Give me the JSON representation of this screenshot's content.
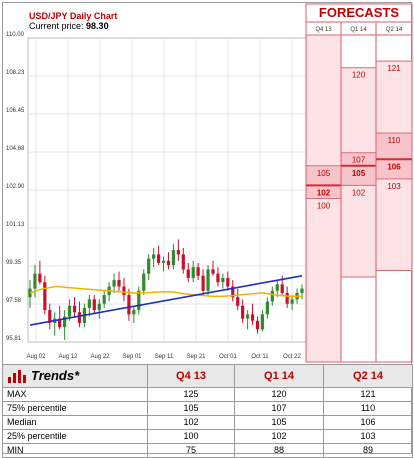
{
  "chart_title": "USD/JPY Daily Chart",
  "price_label": "Current price:",
  "price_value": "98.30",
  "forecasts_title": "FORECASTS",
  "colors": {
    "up": "#2e8b2e",
    "down": "#c8102e",
    "trend": "#1f2fbf",
    "ma": "#f0b400",
    "forecast_fill": "#fde3e6",
    "forecast_line": "#d62a3a",
    "title_red": "#c00000"
  },
  "chart_data": {
    "type": "candlestick",
    "title": "USD/JPY Daily Chart",
    "ylim": [
      95.81,
      110.0
    ],
    "yticks": [
      "110.00",
      "108.23",
      "106.45",
      "104.68",
      "102.90",
      "101.13",
      "99.35",
      "97.58",
      "95.81"
    ],
    "xticks": [
      "Aug 02",
      "Aug 12",
      "Aug 22",
      "Sep 01",
      "Sep 11",
      "Sep 21",
      "Oct 01",
      "Oct 11",
      "Oct 22"
    ],
    "candles": [
      {
        "o": 97.9,
        "h": 98.7,
        "l": 97.4,
        "c": 98.3
      },
      {
        "o": 98.3,
        "h": 99.4,
        "l": 97.9,
        "c": 99.0
      },
      {
        "o": 99.0,
        "h": 99.6,
        "l": 98.5,
        "c": 98.6
      },
      {
        "o": 98.6,
        "h": 98.9,
        "l": 97.1,
        "c": 97.3
      },
      {
        "o": 97.3,
        "h": 97.6,
        "l": 96.4,
        "c": 96.7
      },
      {
        "o": 96.7,
        "h": 97.2,
        "l": 96.1,
        "c": 96.9
      },
      {
        "o": 96.9,
        "h": 97.5,
        "l": 96.4,
        "c": 96.5
      },
      {
        "o": 96.5,
        "h": 97.3,
        "l": 95.9,
        "c": 97.0
      },
      {
        "o": 97.0,
        "h": 97.8,
        "l": 96.8,
        "c": 97.5
      },
      {
        "o": 97.5,
        "h": 97.9,
        "l": 97.0,
        "c": 97.2
      },
      {
        "o": 97.2,
        "h": 97.7,
        "l": 96.5,
        "c": 96.7
      },
      {
        "o": 96.7,
        "h": 97.6,
        "l": 96.5,
        "c": 97.4
      },
      {
        "o": 97.4,
        "h": 98.0,
        "l": 97.0,
        "c": 97.8
      },
      {
        "o": 97.8,
        "h": 98.0,
        "l": 97.1,
        "c": 97.3
      },
      {
        "o": 97.3,
        "h": 97.8,
        "l": 96.9,
        "c": 97.6
      },
      {
        "o": 97.6,
        "h": 98.2,
        "l": 97.4,
        "c": 98.0
      },
      {
        "o": 98.0,
        "h": 98.6,
        "l": 97.7,
        "c": 98.4
      },
      {
        "o": 98.4,
        "h": 99.0,
        "l": 98.1,
        "c": 98.7
      },
      {
        "o": 98.7,
        "h": 99.1,
        "l": 98.2,
        "c": 98.4
      },
      {
        "o": 98.4,
        "h": 98.8,
        "l": 97.7,
        "c": 98.0
      },
      {
        "o": 98.0,
        "h": 98.3,
        "l": 96.8,
        "c": 97.1
      },
      {
        "o": 97.1,
        "h": 97.5,
        "l": 96.7,
        "c": 97.3
      },
      {
        "o": 97.3,
        "h": 98.4,
        "l": 97.1,
        "c": 98.2
      },
      {
        "o": 98.2,
        "h": 99.2,
        "l": 98.0,
        "c": 99.0
      },
      {
        "o": 99.0,
        "h": 99.9,
        "l": 98.7,
        "c": 99.7
      },
      {
        "o": 99.7,
        "h": 100.2,
        "l": 99.3,
        "c": 99.9
      },
      {
        "o": 99.9,
        "h": 100.3,
        "l": 99.4,
        "c": 99.5
      },
      {
        "o": 99.5,
        "h": 99.8,
        "l": 99.1,
        "c": 99.6
      },
      {
        "o": 99.6,
        "h": 100.0,
        "l": 99.2,
        "c": 99.4
      },
      {
        "o": 99.4,
        "h": 100.4,
        "l": 99.2,
        "c": 100.1
      },
      {
        "o": 100.1,
        "h": 100.6,
        "l": 99.6,
        "c": 99.9
      },
      {
        "o": 99.9,
        "h": 100.2,
        "l": 99.0,
        "c": 99.2
      },
      {
        "o": 99.2,
        "h": 99.5,
        "l": 98.6,
        "c": 98.8
      },
      {
        "o": 98.8,
        "h": 99.6,
        "l": 98.6,
        "c": 99.3
      },
      {
        "o": 99.3,
        "h": 99.5,
        "l": 98.7,
        "c": 98.9
      },
      {
        "o": 98.9,
        "h": 99.2,
        "l": 98.0,
        "c": 98.2
      },
      {
        "o": 98.2,
        "h": 99.4,
        "l": 98.0,
        "c": 99.2
      },
      {
        "o": 99.2,
        "h": 99.6,
        "l": 98.9,
        "c": 99.0
      },
      {
        "o": 99.0,
        "h": 99.3,
        "l": 98.4,
        "c": 98.6
      },
      {
        "o": 98.6,
        "h": 99.0,
        "l": 98.3,
        "c": 98.8
      },
      {
        "o": 98.8,
        "h": 99.1,
        "l": 98.2,
        "c": 98.4
      },
      {
        "o": 98.4,
        "h": 98.7,
        "l": 97.7,
        "c": 97.9
      },
      {
        "o": 97.9,
        "h": 98.3,
        "l": 97.3,
        "c": 97.5
      },
      {
        "o": 97.5,
        "h": 97.8,
        "l": 96.7,
        "c": 96.9
      },
      {
        "o": 96.9,
        "h": 97.3,
        "l": 96.4,
        "c": 97.1
      },
      {
        "o": 97.1,
        "h": 97.6,
        "l": 96.6,
        "c": 96.8
      },
      {
        "o": 96.8,
        "h": 97.0,
        "l": 96.2,
        "c": 96.4
      },
      {
        "o": 96.4,
        "h": 97.3,
        "l": 96.3,
        "c": 97.1
      },
      {
        "o": 97.1,
        "h": 97.9,
        "l": 96.9,
        "c": 97.7
      },
      {
        "o": 97.7,
        "h": 98.4,
        "l": 97.5,
        "c": 98.2
      },
      {
        "o": 98.2,
        "h": 98.7,
        "l": 97.9,
        "c": 98.5
      },
      {
        "o": 98.5,
        "h": 98.9,
        "l": 98.0,
        "c": 98.1
      },
      {
        "o": 98.1,
        "h": 98.4,
        "l": 97.4,
        "c": 97.6
      },
      {
        "o": 97.6,
        "h": 98.0,
        "l": 97.3,
        "c": 97.8
      },
      {
        "o": 97.8,
        "h": 98.3,
        "l": 97.6,
        "c": 98.1
      },
      {
        "o": 98.1,
        "h": 98.5,
        "l": 97.8,
        "c": 98.3
      }
    ],
    "trend_line": {
      "start": 96.6,
      "end": 98.9
    },
    "moving_average": [
      98.1,
      98.3,
      98.4,
      98.35,
      98.3,
      98.25,
      98.2,
      98.15,
      98.1,
      98.1,
      98.15,
      98.15,
      98.05,
      98.0,
      97.95,
      97.95,
      98.0,
      98.05,
      98.1,
      98.0,
      97.95,
      97.95
    ],
    "forecast": {
      "columns": [
        "Q4 13",
        "Q1 14",
        "Q2 14"
      ],
      "ylim": [
        75,
        125
      ],
      "max": [
        125,
        120,
        121
      ],
      "p75": [
        105,
        107,
        110
      ],
      "median": [
        102,
        105,
        106
      ],
      "p25": [
        100,
        102,
        103
      ],
      "min": [
        75,
        88,
        89
      ]
    }
  },
  "table": {
    "title": "Trends",
    "asterisk": "*",
    "headers": [
      "Q4 13",
      "Q1 14",
      "Q2 14"
    ],
    "rows": [
      {
        "label": "MAX",
        "values": [
          "125",
          "120",
          "121"
        ]
      },
      {
        "label": "75% percentile",
        "values": [
          "105",
          "107",
          "110"
        ]
      },
      {
        "label": "Median",
        "values": [
          "102",
          "105",
          "106"
        ]
      },
      {
        "label": "25% percentile",
        "values": [
          "100",
          "102",
          "103"
        ]
      },
      {
        "label": "MIN",
        "values": [
          "75",
          "88",
          "89"
        ]
      }
    ]
  }
}
